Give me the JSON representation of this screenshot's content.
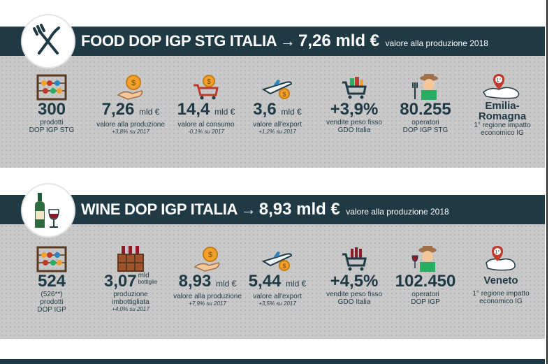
{
  "food": {
    "title": "FOOD DOP IGP STG ITALIA",
    "arrow": "→",
    "value": "7,26 mld €",
    "note": "valore alla produzione 2018",
    "stats": [
      {
        "icon": "abacus-icon",
        "value": "300",
        "unit": "",
        "label": "prodotti",
        "label2": "DOP IGP STG",
        "sub": ""
      },
      {
        "icon": "hand-coin-icon",
        "value": "7,26",
        "unit": "mld €",
        "label": "valore alla produzione",
        "label2": "",
        "sub": "+3,8% su 2017"
      },
      {
        "icon": "cart-coin-icon",
        "value": "14,4",
        "unit": "mld €",
        "label": "valore al consumo",
        "label2": "",
        "sub": "-0,1% su 2017"
      },
      {
        "icon": "plane-coin-icon",
        "value": "3,6",
        "unit": "mld €",
        "label": "valore all'export",
        "label2": "",
        "sub": "+1,2% su 2017"
      },
      {
        "icon": "grocery-cart-icon",
        "value": "+3,9%",
        "unit": "",
        "label": "vendite peso fisso",
        "label2": "GDO Italia",
        "sub": ""
      },
      {
        "icon": "farmer-icon",
        "value": "80.255",
        "unit": "",
        "label": "operatori",
        "label2": "DOP IGP STG",
        "sub": ""
      },
      {
        "icon": "map-pin-region-icon",
        "value": "Emilia-",
        "value2": "Romagna",
        "unit": "",
        "label": "1° regione impatto",
        "label2": "economico IG",
        "sub": "",
        "badge": "1°"
      }
    ]
  },
  "wine": {
    "title": "WINE DOP IGP ITALIA",
    "arrow": "→",
    "value": "8,93 mld €",
    "note": "valore alla produzione 2018",
    "stats": [
      {
        "icon": "abacus-icon",
        "value": "524",
        "unit": "",
        "pre": "(526**)",
        "label": "prodotti",
        "label2": "DOP IGP",
        "sub": ""
      },
      {
        "icon": "wine-crate-icon",
        "value": "3,07",
        "unit_top": "mld",
        "unit_bottom": "bottiglie",
        "label": "produzione",
        "label2": "imbottigliata",
        "sub": "+4,0% su 2017"
      },
      {
        "icon": "hand-coin-icon",
        "value": "8,93",
        "unit": "mld €",
        "label": "valore alla produzione",
        "label2": "",
        "sub": "+7,9% su 2017"
      },
      {
        "icon": "plane-coin-icon",
        "value": "5,44",
        "unit": "mld €",
        "label": "valore all'export",
        "label2": "",
        "sub": "+3,5% su 2017"
      },
      {
        "icon": "wine-cart-icon",
        "value": "+4,5%",
        "unit": "",
        "label": "vendite peso fisso",
        "label2": "GDO Italia",
        "sub": ""
      },
      {
        "icon": "winemaker-icon",
        "value": "102.450",
        "unit": "",
        "label": "operatori",
        "label2": "DOP IGP",
        "sub": ""
      },
      {
        "icon": "map-pin-region-icon",
        "value": "Veneto",
        "unit": "",
        "label": "1° regione impatto",
        "label2": "economico IG",
        "sub": "",
        "badge": "1°"
      }
    ]
  },
  "colors": {
    "banner": "#1f3a44",
    "panel": "#c9c9ca",
    "accent_red": "#c0392b",
    "coin": "#f2a22c"
  }
}
